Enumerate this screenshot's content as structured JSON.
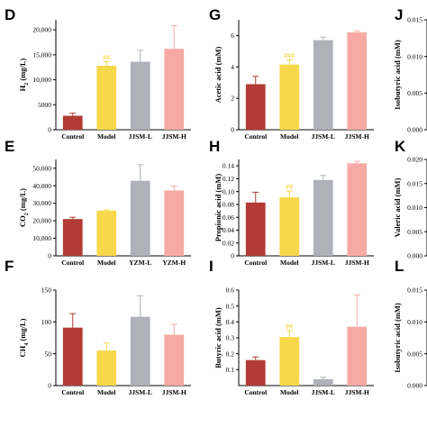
{
  "colors": {
    "Control": "#b23b35",
    "Model": "#f7d84a",
    "L": "#aeb1b8",
    "H": "#f7aaa5"
  },
  "chart_data": [
    {
      "panel": "D",
      "type": "bar",
      "ylabel": "H2 (mg/L)",
      "ylabel_main": "H",
      "ylabel_sub": "2",
      "ylabel_rest": " (mg/L)",
      "categories": [
        "Control",
        "Model",
        "JJSM-L",
        "JJSM-H"
      ],
      "values": [
        2800,
        12800,
        13600,
        16200
      ],
      "errors": [
        500,
        800,
        2300,
        4600
      ],
      "sig": [
        "",
        "##",
        "",
        ""
      ],
      "ylim": [
        0,
        22000
      ],
      "yticks": [
        0,
        5000,
        10000,
        15000,
        20000
      ],
      "ytick_labels": [
        "0",
        "5000",
        "10,000",
        "15,000",
        "20,000"
      ]
    },
    {
      "panel": "E",
      "type": "bar",
      "ylabel": "CO2 (mg/L)",
      "ylabel_main": "CO",
      "ylabel_sub": "2",
      "ylabel_rest": " (mg/L)",
      "categories": [
        "Control",
        "Model",
        "YZM-L",
        "YZM-H"
      ],
      "values": [
        21000,
        25800,
        42800,
        37300
      ],
      "errors": [
        1000,
        400,
        9200,
        2500
      ],
      "sig": [
        "",
        "",
        "",
        ""
      ],
      "ylim": [
        0,
        55000
      ],
      "yticks": [
        0,
        10000,
        20000,
        30000,
        40000,
        50000
      ],
      "ytick_labels": [
        "0",
        "10,000",
        "20,000",
        "30,000",
        "40,000",
        "50,000"
      ]
    },
    {
      "panel": "F",
      "type": "bar",
      "ylabel": "CH4 (mg/L)",
      "ylabel_main": "CH",
      "ylabel_sub": "4",
      "ylabel_rest": " (mg/L)",
      "categories": [
        "Control",
        "Model",
        "JJSM-L",
        "JJSM-H"
      ],
      "values": [
        91,
        55,
        108,
        80
      ],
      "errors": [
        22,
        12,
        33,
        16
      ],
      "sig": [
        "",
        "",
        "",
        ""
      ],
      "ylim": [
        0,
        150
      ],
      "yticks": [
        0,
        50,
        100,
        150
      ],
      "ytick_labels": [
        "0",
        "50",
        "100",
        "150"
      ]
    },
    {
      "panel": "G",
      "type": "bar",
      "ylabel": "Acetic acid (mM)",
      "categories": [
        "Control",
        "Model",
        "JJSM-L",
        "JJSM-H"
      ],
      "values": [
        2.9,
        4.15,
        5.7,
        6.2
      ],
      "errors": [
        0.5,
        0.3,
        0.2,
        0.1
      ],
      "sig": [
        "",
        "###",
        "",
        ""
      ],
      "ylim": [
        0,
        7
      ],
      "yticks": [
        0,
        2,
        4,
        6
      ],
      "ytick_labels": [
        "0",
        "2",
        "4",
        "6"
      ]
    },
    {
      "panel": "H",
      "type": "bar",
      "ylabel": "Propionic acid (mM)",
      "categories": [
        "Control",
        "Model",
        "JJSM-L",
        "JJSM-H"
      ],
      "values": [
        0.083,
        0.091,
        0.118,
        0.144
      ],
      "errors": [
        0.016,
        0.01,
        0.007,
        0.003
      ],
      "sig": [
        "",
        "##",
        "",
        ""
      ],
      "ylim": [
        0,
        0.15
      ],
      "yticks": [
        0,
        0.02,
        0.04,
        0.06,
        0.08,
        0.1,
        0.12,
        0.14
      ],
      "ytick_labels": [
        "0",
        "0.02",
        "0.04",
        "0.06",
        "0.08",
        "0.10",
        "0.12",
        "0.14"
      ]
    },
    {
      "panel": "I",
      "type": "bar",
      "ylabel": "Butyric acid (mM)",
      "categories": [
        "Control",
        "Model",
        "JJSM-L",
        "JJSM-H"
      ],
      "values": [
        0.16,
        0.305,
        0.04,
        0.37
      ],
      "errors": [
        0.02,
        0.04,
        0.012,
        0.2
      ],
      "sig": [
        "",
        "##",
        "",
        ""
      ],
      "ylim": [
        0,
        0.6
      ],
      "yticks": [
        0.1,
        0.2,
        0.3,
        0.4,
        0.5,
        0.6
      ],
      "ytick_labels": [
        "0.1",
        "0.2",
        "0.3",
        "0.4",
        "0.5",
        "0.6"
      ]
    },
    {
      "panel": "J",
      "type": "bar",
      "ylabel": "Isobutyric acid (mM)",
      "categories": [],
      "values": [],
      "ylim": [
        0,
        0.015
      ],
      "yticks": [
        0,
        0.005,
        0.01,
        0.015
      ],
      "ytick_labels": [
        "0.000",
        "0.005",
        "0.010",
        "0.015"
      ]
    },
    {
      "panel": "K",
      "type": "bar",
      "ylabel": "Valeric acid (mM)",
      "categories": [],
      "values": [],
      "ylim": [
        0,
        0.02
      ],
      "yticks": [
        0,
        0.005,
        0.01,
        0.015,
        0.02
      ],
      "ytick_labels": [
        "0.000",
        "0.005",
        "0.010",
        "0.015",
        "0.020"
      ]
    },
    {
      "panel": "L",
      "type": "bar",
      "ylabel": "Isobutyric acid (mM)",
      "categories": [],
      "values": [],
      "ylim": [
        0,
        0.015
      ],
      "yticks": [
        0,
        0.005,
        0.01,
        0.015
      ],
      "ytick_labels": [
        "0.000",
        "0.005",
        "0.010",
        "0.015"
      ]
    }
  ]
}
